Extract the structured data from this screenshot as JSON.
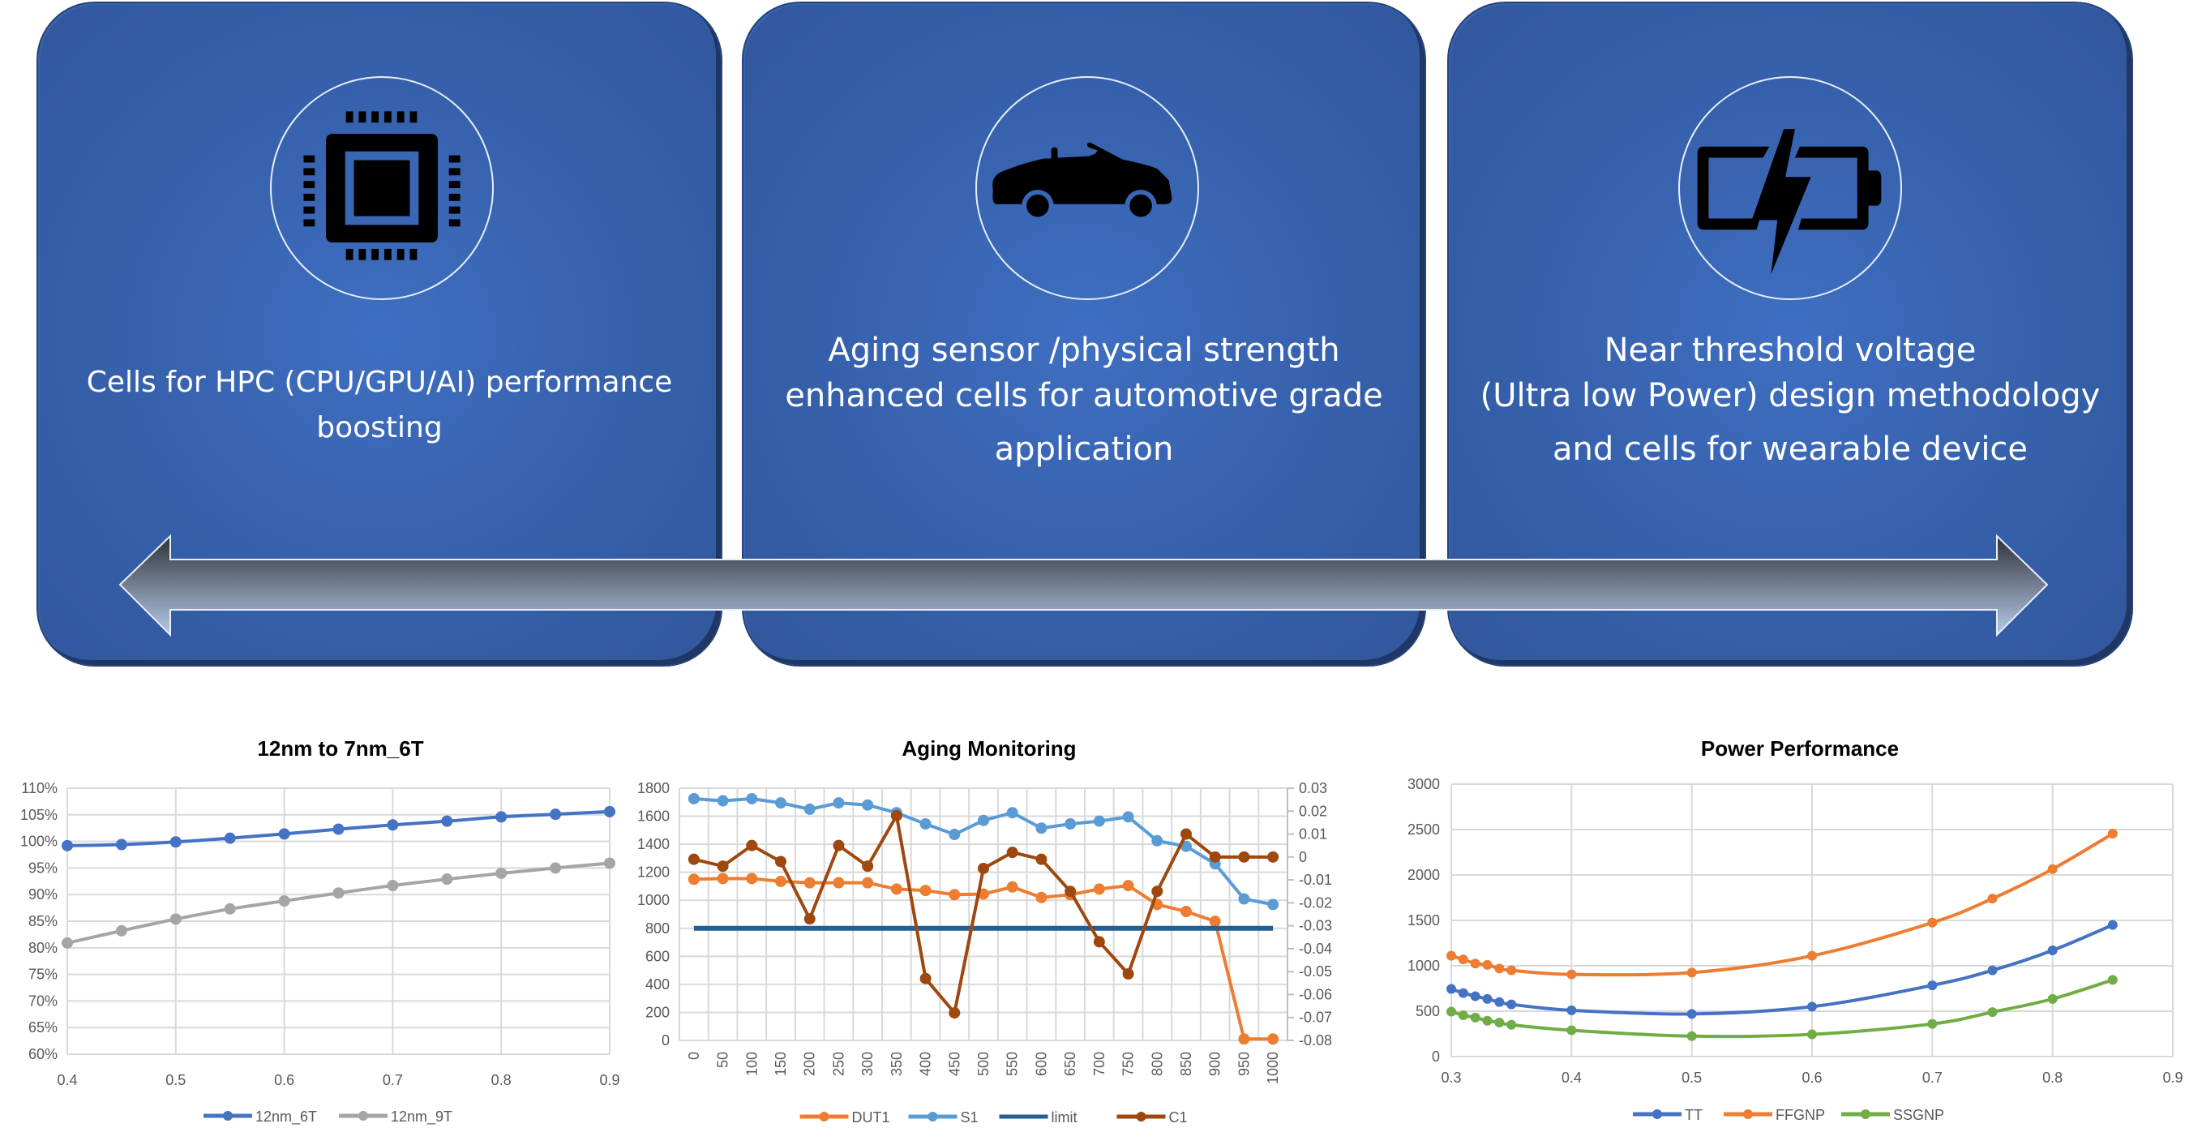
{
  "cards": [
    {
      "icon": "cpu-chip-icon",
      "lines": [
        "Cells for HPC (CPU/GPU/AI) performance",
        "boosting"
      ]
    },
    {
      "icon": "convertible-car-icon",
      "lines": [
        "Aging sensor /physical strength",
        "enhanced cells for automotive grade",
        "application"
      ]
    },
    {
      "icon": "battery-charging-icon",
      "lines": [
        "Near threshold voltage",
        "(Ultra low Power) design methodology",
        "and cells for wearable device"
      ]
    }
  ],
  "arrow": {
    "icon": "double-headed-arrow-icon"
  },
  "colors": {
    "card_blue": "#3762ae",
    "card_border": "#1f3762",
    "blue_series": "#4472c4",
    "gray_series": "#a5a5a5",
    "orange_series": "#ed7d31",
    "light_blue_series": "#5b9bd5",
    "dark_blue_series": "#255e91",
    "brown_series": "#9e480e",
    "green_series": "#70ad47"
  },
  "chart_data": [
    {
      "type": "line",
      "title": "12nm to 7nm_6T",
      "xlabel": "",
      "ylabel": "",
      "x": [
        0.4,
        0.45,
        0.5,
        0.55,
        0.6,
        0.65,
        0.7,
        0.75,
        0.8,
        0.85,
        0.9
      ],
      "x_ticks": [
        "0.4",
        "0.5",
        "0.6",
        "0.7",
        "0.8",
        "0.9"
      ],
      "y_ticks": [
        "60%",
        "65%",
        "70%",
        "75%",
        "80%",
        "85%",
        "90%",
        "95%",
        "100%",
        "105%",
        "110%"
      ],
      "ylim": [
        60,
        110
      ],
      "xlim": [
        0.4,
        0.9
      ],
      "grid": true,
      "legend_position": "bottom",
      "series": [
        {
          "name": "12nm_6T",
          "color": "#4472c4",
          "values": [
            99.2,
            99.4,
            99.9,
            100.6,
            101.4,
            102.3,
            103.1,
            103.8,
            104.6,
            105.1,
            105.6
          ]
        },
        {
          "name": "12nm_9T",
          "color": "#a5a5a5",
          "values": [
            80.9,
            83.2,
            85.4,
            87.3,
            88.8,
            90.3,
            91.7,
            92.9,
            94.0,
            95.0,
            95.9
          ]
        }
      ]
    },
    {
      "type": "line",
      "title": "Aging Monitoring",
      "xlabel": "",
      "ylabel": "",
      "categories": [
        "0",
        "50",
        "100",
        "150",
        "200",
        "250",
        "300",
        "350",
        "400",
        "450",
        "500",
        "550",
        "600",
        "650",
        "700",
        "750",
        "800",
        "850",
        "900",
        "950",
        "1000"
      ],
      "y_ticks": [
        "0",
        "200",
        "400",
        "600",
        "800",
        "1000",
        "1200",
        "1400",
        "1600",
        "1800"
      ],
      "ylim": [
        0,
        1800
      ],
      "y2_ticks": [
        "-0.08",
        "-0.07",
        "-0.06",
        "-0.05",
        "-0.04",
        "-0.03",
        "-0.02",
        "-0.01",
        "0",
        "0.01",
        "0.02",
        "0.03"
      ],
      "y2lim": [
        -0.08,
        0.03
      ],
      "grid": true,
      "legend_position": "bottom",
      "series": [
        {
          "name": "DUT1",
          "axis": "left",
          "color": "#ed7d31",
          "values": [
            1150,
            1155,
            1155,
            1135,
            1125,
            1125,
            1125,
            1080,
            1070,
            1040,
            1045,
            1095,
            1020,
            1040,
            1080,
            1105,
            970,
            920,
            850,
            10,
            10
          ]
        },
        {
          "name": "S1",
          "axis": "left",
          "color": "#5b9bd5",
          "values": [
            1725,
            1710,
            1725,
            1695,
            1650,
            1695,
            1680,
            1625,
            1545,
            1470,
            1570,
            1625,
            1515,
            1545,
            1565,
            1595,
            1425,
            1385,
            1260,
            1010,
            970
          ]
        },
        {
          "name": "limit",
          "axis": "left",
          "color": "#255e91",
          "values": [
            800,
            800,
            800,
            800,
            800,
            800,
            800,
            800,
            800,
            800,
            800,
            800,
            800,
            800,
            800,
            800,
            800,
            800,
            800,
            800,
            800
          ]
        },
        {
          "name": "C1",
          "axis": "right",
          "color": "#9e480e",
          "values": [
            -0.001,
            -0.004,
            0.005,
            -0.002,
            -0.027,
            0.005,
            -0.004,
            0.018,
            -0.053,
            -0.068,
            -0.005,
            0.002,
            -0.001,
            -0.015,
            -0.037,
            -0.051,
            -0.015,
            0.01,
            0.0,
            0.0,
            0.0
          ]
        }
      ]
    },
    {
      "type": "scatter",
      "title": "Power Performance",
      "xlabel": "",
      "ylabel": "",
      "x_ticks": [
        "0.3",
        "0.4",
        "0.5",
        "0.6",
        "0.7",
        "0.8",
        "0.9"
      ],
      "xlim": [
        0.3,
        0.9
      ],
      "y_ticks": [
        "0",
        "500",
        "1000",
        "1500",
        "2000",
        "2500",
        "3000"
      ],
      "ylim": [
        0,
        3000
      ],
      "grid": true,
      "legend_position": "bottom",
      "trendline": "polynomial",
      "x": [
        0.3,
        0.31,
        0.32,
        0.33,
        0.34,
        0.35,
        0.4,
        0.5,
        0.6,
        0.7,
        0.75,
        0.8,
        0.85
      ],
      "series": [
        {
          "name": "TT",
          "color": "#4472c4",
          "values": [
            745,
            700,
            665,
            635,
            600,
            575,
            510,
            470,
            550,
            785,
            950,
            1170,
            1450
          ]
        },
        {
          "name": "FFGNP",
          "color": "#ed7d31",
          "values": [
            1110,
            1070,
            1025,
            1010,
            970,
            950,
            905,
            925,
            1110,
            1475,
            1740,
            2065,
            2455
          ]
        },
        {
          "name": "SSGNP",
          "color": "#70ad47",
          "values": [
            495,
            455,
            430,
            395,
            375,
            350,
            290,
            225,
            245,
            360,
            490,
            635,
            845
          ]
        }
      ]
    }
  ]
}
